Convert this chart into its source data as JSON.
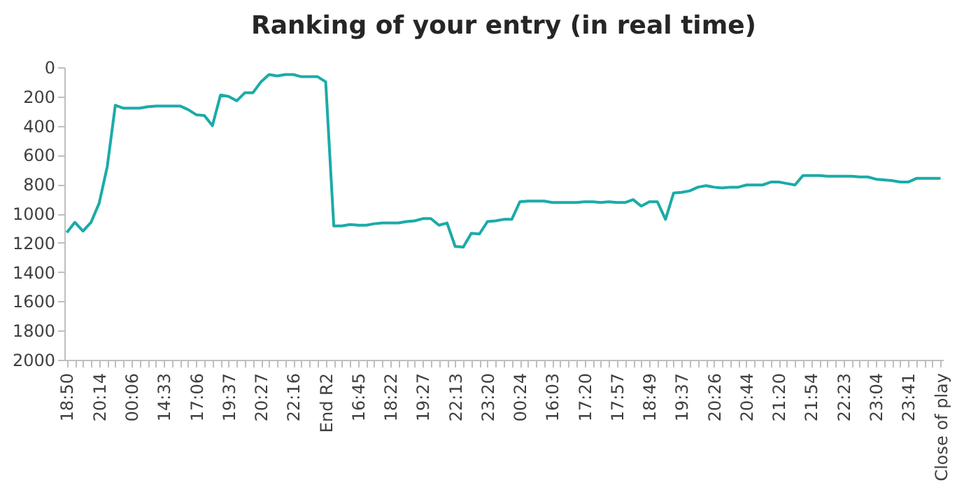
{
  "chart_data": {
    "type": "line",
    "title": "Ranking of your entry (in real time)",
    "categories": [
      "18:50",
      null,
      null,
      null,
      "20:14",
      null,
      null,
      null,
      "00:06",
      null,
      null,
      null,
      "14:33",
      null,
      null,
      null,
      "17:06",
      null,
      null,
      null,
      "19:37",
      null,
      null,
      null,
      "20:27",
      null,
      null,
      null,
      "22:16",
      null,
      null,
      null,
      "End R2",
      null,
      null,
      null,
      "16:45",
      null,
      null,
      null,
      "18:22",
      null,
      null,
      null,
      "19:27",
      null,
      null,
      null,
      "22:13",
      null,
      null,
      null,
      "23:20",
      null,
      null,
      null,
      "00:24",
      null,
      null,
      null,
      "16:03",
      null,
      null,
      null,
      "17:20",
      null,
      null,
      null,
      "17:57",
      null,
      null,
      null,
      "18:49",
      null,
      null,
      null,
      "19:37",
      null,
      null,
      null,
      "20:26",
      null,
      null,
      null,
      "20:44",
      null,
      null,
      null,
      "21:20",
      null,
      null,
      null,
      "21:54",
      null,
      null,
      null,
      "22:23",
      null,
      null,
      null,
      "23:04",
      null,
      null,
      null,
      "23:41",
      null,
      null,
      null,
      "Close of play"
    ],
    "series": [
      {
        "color": "#1aaba8",
        "values": [
          1130,
          1060,
          1120,
          1060,
          930,
          680,
          260,
          280,
          280,
          280,
          270,
          265,
          265,
          265,
          265,
          290,
          325,
          330,
          400,
          190,
          200,
          230,
          175,
          175,
          100,
          50,
          60,
          50,
          50,
          65,
          65,
          65,
          100,
          1085,
          1085,
          1075,
          1080,
          1080,
          1070,
          1065,
          1065,
          1065,
          1055,
          1050,
          1035,
          1035,
          1080,
          1065,
          1225,
          1230,
          1135,
          1140,
          1055,
          1050,
          1040,
          1040,
          920,
          915,
          915,
          915,
          925,
          925,
          925,
          925,
          920,
          920,
          925,
          920,
          925,
          925,
          905,
          950,
          920,
          920,
          1040,
          860,
          855,
          845,
          820,
          810,
          820,
          825,
          820,
          820,
          805,
          805,
          805,
          785,
          785,
          795,
          805,
          740,
          740,
          740,
          745,
          745,
          745,
          745,
          750,
          750,
          765,
          770,
          775,
          785,
          785,
          760,
          760,
          760,
          760
        ]
      }
    ],
    "ylim": [
      2000,
      0
    ],
    "yticks": [
      0,
      200,
      400,
      600,
      800,
      1000,
      1200,
      1400,
      1600,
      1800,
      2000
    ],
    "grid": false,
    "marker": "none",
    "line_style": "solid"
  }
}
